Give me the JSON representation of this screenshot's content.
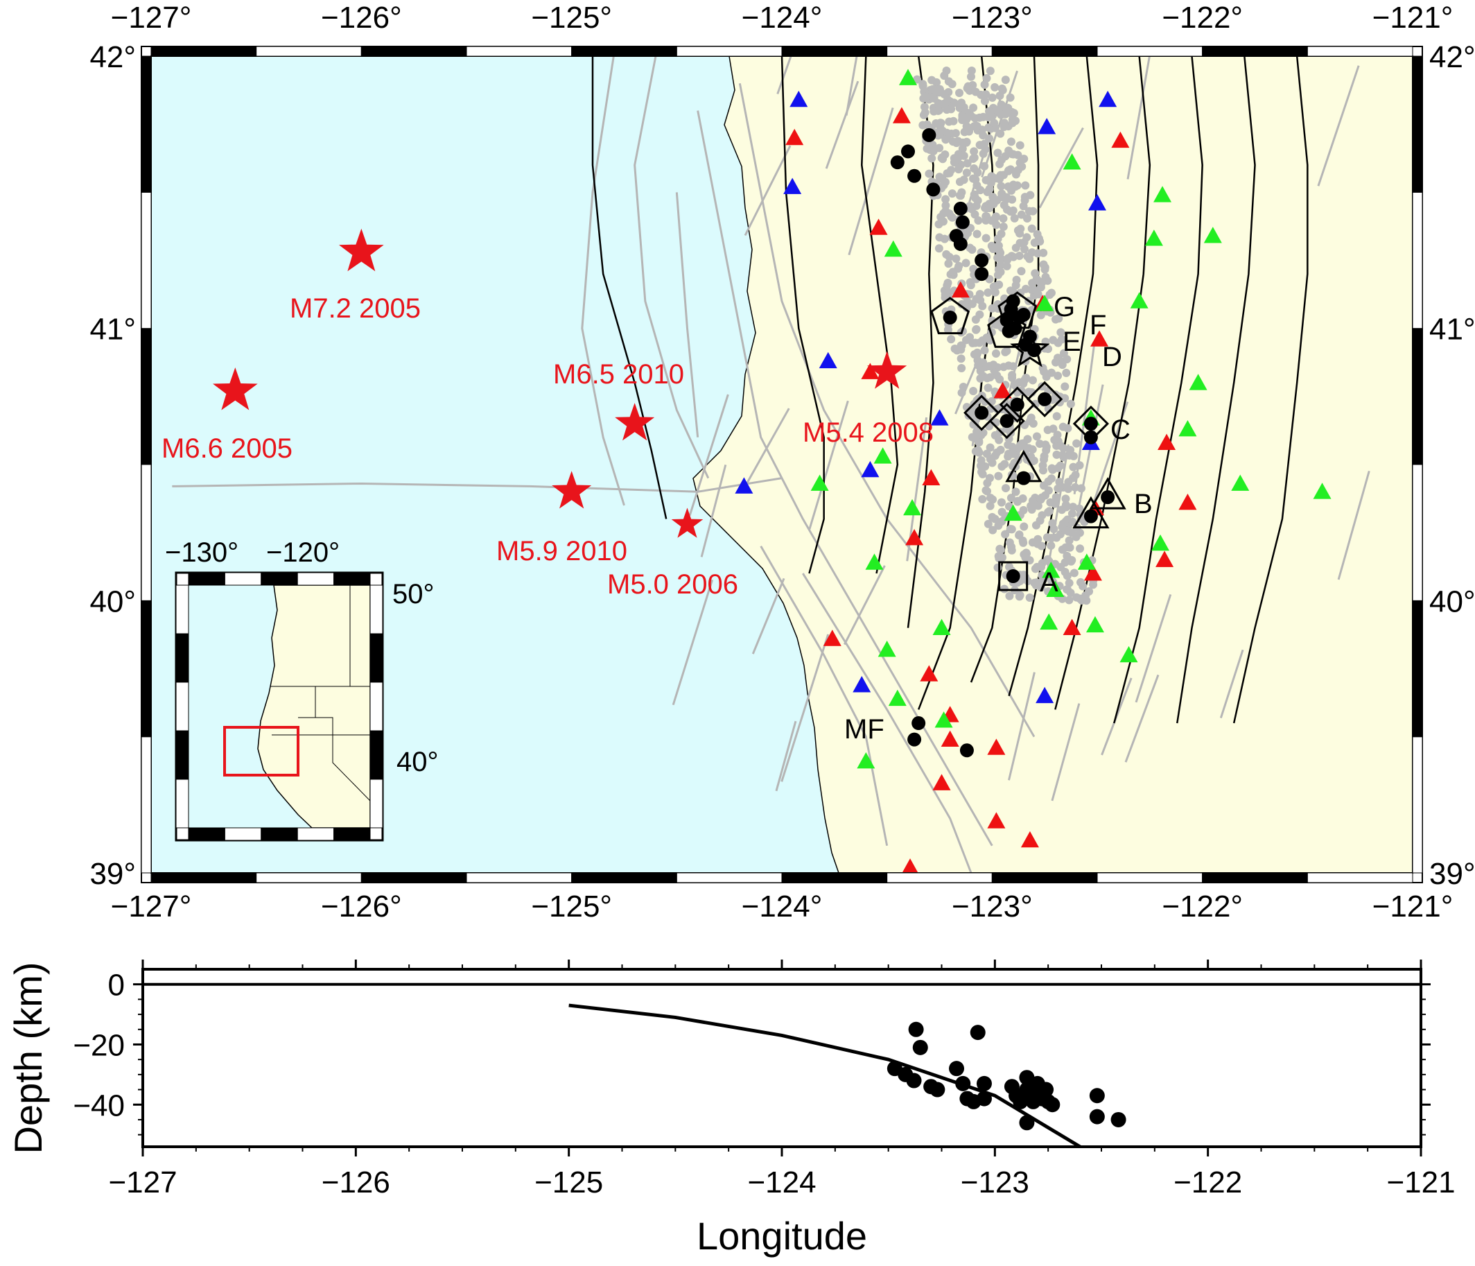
{
  "map": {
    "lon_range": [
      -127,
      -121
    ],
    "lat_range": [
      39,
      42
    ],
    "lon_tick_labels": [
      {
        "lon": -127,
        "text": "−127°"
      },
      {
        "lon": -126,
        "text": "−126°"
      },
      {
        "lon": -125,
        "text": "−125°"
      },
      {
        "lon": -124,
        "text": "−124°"
      },
      {
        "lon": -123,
        "text": "−123°"
      },
      {
        "lon": -122,
        "text": "−122°"
      },
      {
        "lon": -121,
        "text": "−121°"
      }
    ],
    "lat_tick_labels": [
      {
        "lat": 42,
        "text": "42°"
      },
      {
        "lat": 41,
        "text": "41°"
      },
      {
        "lat": 40,
        "text": "40°"
      },
      {
        "lat": 39,
        "text": "39°"
      }
    ],
    "colors": {
      "ocean": "#dcfbfd",
      "land": "#fdfde0",
      "fault": "#b5b5b5",
      "quake_star": "#e8141b",
      "seismicity": "#b9b9b9",
      "tri_red": "#ee1111",
      "tri_green": "#22ee22",
      "tri_blue": "#1111ee"
    },
    "historic_quakes": [
      {
        "lon": -126.0,
        "lat": 41.28,
        "label": "M7.2 2005"
      },
      {
        "lon": -126.6,
        "lat": 40.77,
        "label": "M6.6 2005"
      },
      {
        "lon": -124.7,
        "lat": 40.65,
        "label": "M6.5 2010"
      },
      {
        "lon": -125.0,
        "lat": 40.4,
        "label": "M5.9 2010"
      },
      {
        "lon": -124.45,
        "lat": 40.28,
        "label": "M5.0 2006"
      },
      {
        "lon": -123.5,
        "lat": 40.84,
        "label": "M5.4 2008"
      }
    ],
    "site_labels": [
      {
        "id": "A",
        "text": "A"
      },
      {
        "id": "B",
        "text": "B"
      },
      {
        "id": "C",
        "text": "C"
      },
      {
        "id": "D",
        "text": "D"
      },
      {
        "id": "E",
        "text": "E"
      },
      {
        "id": "F",
        "text": "F"
      },
      {
        "id": "G",
        "text": "G"
      },
      {
        "id": "MF",
        "text": "MF"
      }
    ],
    "site_symbols": [
      {
        "shape": "square",
        "lon": -122.9,
        "lat": 40.09
      },
      {
        "shape": "triangle",
        "lon": -122.85,
        "lat": 40.48
      },
      {
        "shape": "triangle",
        "lon": -122.45,
        "lat": 40.38
      },
      {
        "shape": "triangle",
        "lon": -122.53,
        "lat": 40.31
      },
      {
        "shape": "diamond",
        "lon": -123.05,
        "lat": 40.69
      },
      {
        "shape": "diamond",
        "lon": -122.93,
        "lat": 40.66
      },
      {
        "shape": "diamond",
        "lon": -122.88,
        "lat": 40.72
      },
      {
        "shape": "diamond",
        "lon": -122.75,
        "lat": 40.74
      },
      {
        "shape": "diamond",
        "lon": -122.53,
        "lat": 40.65
      },
      {
        "shape": "pentagon",
        "lon": -123.2,
        "lat": 41.04
      },
      {
        "shape": "pentagon",
        "lon": -122.93,
        "lat": 40.99
      },
      {
        "shape": "pentagon",
        "lon": -122.88,
        "lat": 41.06
      },
      {
        "shape": "star",
        "lon": -122.82,
        "lat": 40.92
      }
    ],
    "lfe_families": [
      [
        -123.3,
        41.71
      ],
      [
        -123.4,
        41.65
      ],
      [
        -123.45,
        41.61
      ],
      [
        -123.37,
        41.56
      ],
      [
        -123.28,
        41.51
      ],
      [
        -123.15,
        41.44
      ],
      [
        -123.14,
        41.39
      ],
      [
        -123.17,
        41.34
      ],
      [
        -123.15,
        41.31
      ],
      [
        -123.05,
        41.25
      ],
      [
        -123.05,
        41.2
      ],
      [
        -122.9,
        41.1
      ],
      [
        -122.91,
        41.07
      ],
      [
        -122.93,
        41.03
      ],
      [
        -122.87,
        41.04
      ],
      [
        -122.89,
        41.0
      ],
      [
        -122.82,
        40.97
      ],
      [
        -122.84,
        40.94
      ],
      [
        -122.8,
        40.92
      ],
      [
        -123.05,
        40.69
      ],
      [
        -122.93,
        40.66
      ],
      [
        -122.88,
        40.72
      ],
      [
        -122.75,
        40.74
      ],
      [
        -122.53,
        40.65
      ],
      [
        -122.53,
        40.6
      ],
      [
        -122.85,
        40.45
      ],
      [
        -122.45,
        40.38
      ],
      [
        -122.53,
        40.31
      ],
      [
        -122.9,
        40.09
      ],
      [
        -123.2,
        41.04
      ],
      [
        -123.35,
        39.55
      ],
      [
        -123.37,
        39.49
      ],
      [
        -123.12,
        39.45
      ],
      [
        -122.92,
        40.99
      ],
      [
        -122.85,
        41.05
      ]
    ],
    "stations_red": [
      [
        -123.43,
        41.78
      ],
      [
        -123.94,
        41.7
      ],
      [
        -122.39,
        41.69
      ],
      [
        -123.54,
        41.37
      ],
      [
        -123.15,
        41.14
      ],
      [
        -122.76,
        41.09
      ],
      [
        -122.49,
        40.96
      ],
      [
        -123.58,
        40.84
      ],
      [
        -122.95,
        40.77
      ],
      [
        -123.29,
        40.45
      ],
      [
        -122.17,
        40.58
      ],
      [
        -122.07,
        40.36
      ],
      [
        -122.51,
        40.34
      ],
      [
        -123.37,
        40.23
      ],
      [
        -122.18,
        40.15
      ],
      [
        -122.52,
        40.1
      ],
      [
        -123.76,
        39.86
      ],
      [
        -122.62,
        39.9
      ],
      [
        -123.3,
        39.73
      ],
      [
        -123.2,
        39.58
      ],
      [
        -123.2,
        39.49
      ],
      [
        -122.98,
        39.46
      ],
      [
        -123.24,
        39.33
      ],
      [
        -122.98,
        39.19
      ],
      [
        -122.82,
        39.12
      ],
      [
        -123.39,
        39.02
      ]
    ],
    "stations_green": [
      [
        -123.4,
        41.92
      ],
      [
        -122.62,
        41.61
      ],
      [
        -122.19,
        41.49
      ],
      [
        -122.23,
        41.33
      ],
      [
        -121.95,
        41.34
      ],
      [
        -123.47,
        41.29
      ],
      [
        -122.3,
        41.1
      ],
      [
        -122.75,
        41.09
      ],
      [
        -122.02,
        40.8
      ],
      [
        -122.07,
        40.63
      ],
      [
        -122.53,
        40.67
      ],
      [
        -123.52,
        40.53
      ],
      [
        -123.82,
        40.43
      ],
      [
        -121.82,
        40.43
      ],
      [
        -121.43,
        40.4
      ],
      [
        -123.38,
        40.34
      ],
      [
        -122.9,
        40.32
      ],
      [
        -122.2,
        40.21
      ],
      [
        -123.56,
        40.14
      ],
      [
        -122.55,
        40.14
      ],
      [
        -122.72,
        40.11
      ],
      [
        -122.7,
        40.04
      ],
      [
        -123.24,
        39.9
      ],
      [
        -122.73,
        39.92
      ],
      [
        -122.51,
        39.91
      ],
      [
        -123.5,
        39.82
      ],
      [
        -122.35,
        39.8
      ],
      [
        -123.45,
        39.64
      ],
      [
        -123.23,
        39.56
      ],
      [
        -123.6,
        39.41
      ]
    ],
    "stations_blue": [
      [
        -123.92,
        41.84
      ],
      [
        -122.45,
        41.84
      ],
      [
        -122.74,
        41.74
      ],
      [
        -123.95,
        41.52
      ],
      [
        -122.5,
        41.46
      ],
      [
        -123.78,
        40.88
      ],
      [
        -123.25,
        40.67
      ],
      [
        -122.53,
        40.58
      ],
      [
        -123.58,
        40.48
      ],
      [
        -124.18,
        40.42
      ],
      [
        -123.62,
        39.69
      ],
      [
        -122.75,
        39.65
      ]
    ],
    "slab_contours": [
      [
        [
          -124.9,
          42.0
        ],
        [
          -124.9,
          41.6
        ],
        [
          -124.85,
          41.2
        ],
        [
          -124.7,
          40.8
        ],
        [
          -124.62,
          40.55
        ],
        [
          -124.55,
          40.3
        ]
      ],
      [
        [
          -124.0,
          42.0
        ],
        [
          -123.98,
          41.5
        ],
        [
          -123.92,
          41.0
        ],
        [
          -123.8,
          40.6
        ],
        [
          -123.8,
          40.3
        ],
        [
          -123.87,
          40.1
        ]
      ],
      [
        [
          -123.6,
          42.0
        ],
        [
          -123.62,
          41.6
        ],
        [
          -123.55,
          41.2
        ],
        [
          -123.48,
          40.8
        ],
        [
          -123.45,
          40.5
        ],
        [
          -123.55,
          40.1
        ]
      ],
      [
        [
          -123.35,
          42.0
        ],
        [
          -123.28,
          41.6
        ],
        [
          -123.3,
          41.2
        ],
        [
          -123.28,
          40.8
        ],
        [
          -123.32,
          40.4
        ],
        [
          -123.4,
          39.9
        ]
      ],
      [
        [
          -123.05,
          42.0
        ],
        [
          -123.0,
          41.6
        ],
        [
          -122.98,
          41.2
        ],
        [
          -123.05,
          40.8
        ],
        [
          -123.1,
          40.4
        ],
        [
          -123.2,
          39.9
        ],
        [
          -123.35,
          39.6
        ]
      ],
      [
        [
          -122.8,
          42.0
        ],
        [
          -122.78,
          41.6
        ],
        [
          -122.78,
          41.2
        ],
        [
          -122.85,
          40.8
        ],
        [
          -122.9,
          40.4
        ],
        [
          -123.0,
          39.9
        ],
        [
          -123.1,
          39.7
        ]
      ],
      [
        [
          -122.55,
          42.0
        ],
        [
          -122.5,
          41.6
        ],
        [
          -122.52,
          41.2
        ],
        [
          -122.6,
          40.8
        ],
        [
          -122.72,
          40.3
        ],
        [
          -122.83,
          39.9
        ],
        [
          -122.92,
          39.65
        ]
      ],
      [
        [
          -122.3,
          42.0
        ],
        [
          -122.25,
          41.6
        ],
        [
          -122.28,
          41.2
        ],
        [
          -122.35,
          40.8
        ],
        [
          -122.48,
          40.3
        ],
        [
          -122.6,
          39.9
        ],
        [
          -122.7,
          39.6
        ]
      ],
      [
        [
          -122.05,
          42.0
        ],
        [
          -122.0,
          41.6
        ],
        [
          -122.02,
          41.2
        ],
        [
          -122.1,
          40.8
        ],
        [
          -122.22,
          40.3
        ],
        [
          -122.3,
          39.9
        ],
        [
          -122.42,
          39.55
        ]
      ],
      [
        [
          -121.8,
          42.0
        ],
        [
          -121.75,
          41.6
        ],
        [
          -121.78,
          41.2
        ],
        [
          -121.85,
          40.8
        ],
        [
          -121.95,
          40.3
        ],
        [
          -122.05,
          39.9
        ],
        [
          -122.12,
          39.55
        ]
      ],
      [
        [
          -121.55,
          42.0
        ],
        [
          -121.5,
          41.6
        ],
        [
          -121.5,
          41.2
        ],
        [
          -121.55,
          40.8
        ],
        [
          -121.62,
          40.3
        ],
        [
          -121.75,
          39.9
        ],
        [
          -121.85,
          39.55
        ]
      ]
    ]
  },
  "inset": {
    "lon_labels": [
      "−130°",
      "−120°"
    ],
    "lat_labels": [
      "50°",
      "40°"
    ]
  },
  "chart_data": {
    "type": "scatter",
    "xlabel": "Longitude",
    "ylabel": "Depth (km)",
    "xlim": [
      -127,
      -121
    ],
    "ylim": [
      -54,
      5
    ],
    "x_ticks": [
      "−127",
      "−126",
      "−125",
      "−124",
      "−123",
      "−122",
      "−121"
    ],
    "y_ticks": [
      {
        "value": 0,
        "text": "0"
      },
      {
        "value": -20,
        "text": "−20"
      },
      {
        "value": -40,
        "text": "−40"
      }
    ],
    "series": [
      {
        "type": "scatter",
        "points": [
          [
            -123.37,
            -15
          ],
          [
            -123.35,
            -21
          ],
          [
            -123.47,
            -28
          ],
          [
            -123.42,
            -30
          ],
          [
            -123.38,
            -32
          ],
          [
            -123.3,
            -34
          ],
          [
            -123.27,
            -35
          ],
          [
            -123.18,
            -28
          ],
          [
            -123.15,
            -33
          ],
          [
            -123.13,
            -38
          ],
          [
            -123.1,
            -39
          ],
          [
            -123.05,
            -33
          ],
          [
            -123.05,
            -38
          ],
          [
            -123.08,
            -16
          ],
          [
            -122.92,
            -34
          ],
          [
            -122.9,
            -37
          ],
          [
            -122.88,
            -39
          ],
          [
            -122.85,
            -31
          ],
          [
            -122.85,
            -35
          ],
          [
            -122.83,
            -37
          ],
          [
            -122.82,
            -39
          ],
          [
            -122.8,
            -33
          ],
          [
            -122.8,
            -36
          ],
          [
            -122.78,
            -38
          ],
          [
            -122.76,
            -35
          ],
          [
            -122.75,
            -39
          ],
          [
            -122.73,
            -40
          ],
          [
            -122.85,
            -46
          ],
          [
            -122.52,
            -37
          ],
          [
            -122.52,
            -44
          ],
          [
            -122.42,
            -45
          ]
        ]
      },
      {
        "type": "line",
        "points": [
          [
            -125.0,
            -7
          ],
          [
            -124.5,
            -11
          ],
          [
            -124.0,
            -17
          ],
          [
            -123.5,
            -25
          ],
          [
            -123.0,
            -37
          ],
          [
            -122.6,
            -54
          ]
        ]
      }
    ]
  }
}
